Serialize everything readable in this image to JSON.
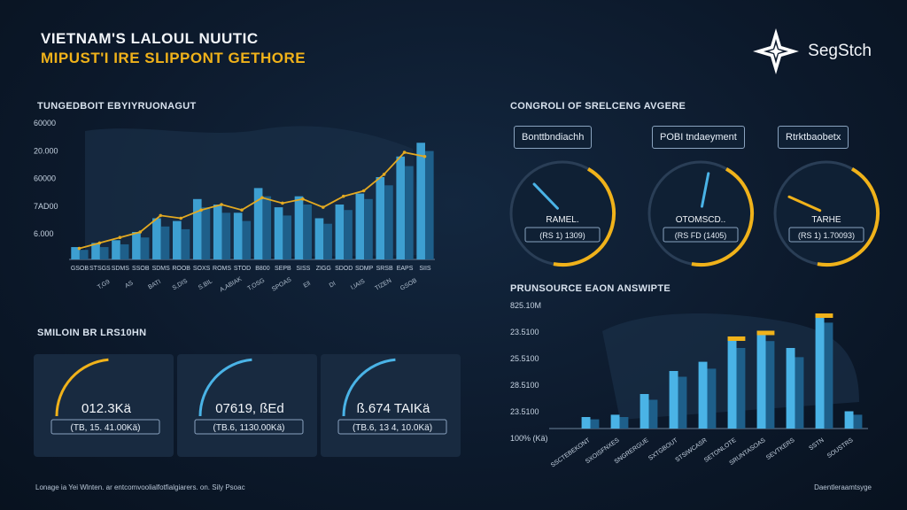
{
  "header": {
    "title": "VIETNAM'S LALOUL NUUTIC",
    "subtitle": "MIPUST'I IRE SLIPPONT GETHORE",
    "brand": "SegStch",
    "brand_icon": "compass-star-icon"
  },
  "left_chart": {
    "title": "TUNGEDBOIT EBYIYRUONAGUT"
  },
  "gauges_section": {
    "title": "CONGROLI OF SRELCENG AVGERE",
    "gauges": [
      {
        "header": "Bonttbndiachh",
        "label": "RAMEL.",
        "sublabel": "(RS 1) 1309)",
        "value": 0.3,
        "color": "#4ab3e6"
      },
      {
        "header": "POBI tndaeyment",
        "label": "OTOMSCD..",
        "sublabel": "(RS FD (1405)",
        "value": 0.55,
        "color": "#4ab3e6"
      },
      {
        "header": "Rtrktbaobetx",
        "label": "TARHE",
        "sublabel": "(RS 1) 1.70093)",
        "value": 0.2,
        "color": "#f0b21a"
      }
    ]
  },
  "stats_section": {
    "title": "SMILOIN BR LRS10HN",
    "cards": [
      {
        "value": "012.3Kä",
        "sub": "(TB, 15. 41.00Kä)",
        "accent": "#f0b21a"
      },
      {
        "value": "07619, ßEd",
        "sub": "(TB.6, 1130.00Kä)",
        "accent": "#4ab3e6"
      },
      {
        "value": "ß.674 TAIKä",
        "sub": "(TB.6, 13 4, 10.0Kä)",
        "accent": "#4ab3e6"
      }
    ]
  },
  "right_chart": {
    "title": "PRUNSOURCE EAON ANSWIPTE"
  },
  "footer": {
    "left": "Lonage ia Yei Wlnten. ar entcomvoolialfotfialgiarers. on. Sily Psoac",
    "right": "Daentleraamtsyge"
  },
  "chart_data": [
    {
      "type": "bar",
      "title": "TUNGEDBOIT EBYIYRUONAGUT",
      "y_tick_labels": [
        "60000",
        "20.000",
        "60000",
        "7AD00",
        "6.000"
      ],
      "categories": [
        "GSOB",
        "STSGS",
        "SDMS",
        "SSOB",
        "SDMS",
        "ROOB",
        "SOXS",
        "ROMS",
        "STOD",
        "B800",
        "SEPB",
        "SISS",
        "ZIGG",
        "SDOD",
        "SDMP",
        "SRSB",
        "EAPS",
        "SIIS"
      ],
      "category_sublabels": [
        "T,G9",
        "AS",
        "BATI",
        "S,DIS",
        "S.BIL",
        "A,ABIAK",
        "T,OSG",
        "SPOAS",
        "Ell",
        "DI",
        "I,IAIS",
        "TIZEN",
        "GSOB"
      ],
      "series": [
        {
          "values": [
            9,
            12,
            14,
            20,
            30,
            28,
            44,
            40,
            34,
            52,
            38,
            46,
            30,
            40,
            48,
            60,
            75,
            85
          ]
        },
        {
          "values": [
            7,
            9,
            11,
            16,
            24,
            22,
            38,
            34,
            28,
            46,
            32,
            40,
            26,
            36,
            44,
            54,
            68,
            79
          ]
        }
      ],
      "line": [
        8,
        12,
        16,
        20,
        32,
        30,
        36,
        40,
        36,
        45,
        41,
        44,
        38,
        46,
        50,
        62,
        78,
        75
      ],
      "colors": {
        "bar_light": "#3d9fd1",
        "bar_dark": "#1e5f8a",
        "line": "#e3a921"
      }
    },
    {
      "type": "bar",
      "title": "PRUNSOURCE EAON ANSWIPTE",
      "y_tick_labels": [
        "825.10M",
        "23.5100",
        "25.5100",
        "28.5100",
        "23.5100",
        "100% (Kä)"
      ],
      "categories": [
        "SSCTEBEKONT",
        "SXOISFNXES",
        "SNGRERGUE",
        "SXTGBOUT",
        "STSIWCASR",
        "SETONLOTE",
        "SRUNTASOAS",
        "SEVTKERS",
        "SSTN",
        "SOUSTRS"
      ],
      "series": [
        {
          "values": [
            10,
            12,
            30,
            50,
            58,
            80,
            85,
            70,
            100,
            15
          ]
        },
        {
          "values": [
            8,
            10,
            25,
            45,
            52,
            70,
            76,
            62,
            92,
            12
          ]
        }
      ],
      "colors": {
        "bar_light": "#4ab3e6",
        "bar_dark": "#1e5f8a",
        "accent": "#f0b21a"
      }
    }
  ]
}
